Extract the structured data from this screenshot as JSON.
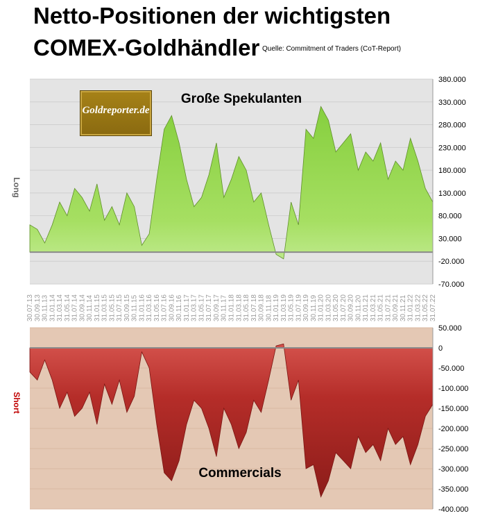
{
  "header": {
    "title_line1": "Netto-Positionen der wichtigsten",
    "title_line2": "COMEX-Goldhändler",
    "source": "Quelle: Commitment of Traders (CoT-Report)"
  },
  "logo": {
    "text": "Goldreporter.de"
  },
  "colors": {
    "long_fill": "#8fd24a",
    "long_panel": "#e4e4e4",
    "short_fill": "#b82f2b",
    "short_panel": "#e4c8b4"
  },
  "chart_data": [
    {
      "type": "area",
      "panel": "top",
      "series_label": "Große Spekulanten",
      "side_label": "Long",
      "ylim": [
        -70000,
        380000
      ],
      "yticks": [
        "380.000",
        "330.000",
        "280.000",
        "230.000",
        "180.000",
        "130.000",
        "80.000",
        "30.000",
        "-20.000",
        "-70.000"
      ],
      "ytick_values": [
        380000,
        330000,
        280000,
        230000,
        180000,
        130000,
        80000,
        30000,
        -20000,
        -70000
      ],
      "x_dates": [
        "30.07.13",
        "30.09.13",
        "30.11.13",
        "31.01.14",
        "31.03.14",
        "31.05.14",
        "31.07.14",
        "30.09.14",
        "30.11.14",
        "31.01.15",
        "31.03.15",
        "31.05.15",
        "31.07.15",
        "30.09.15",
        "30.11.15",
        "31.01.16",
        "31.03.16",
        "31.05.16",
        "31.07.16",
        "30.09.16",
        "30.11.16",
        "31.01.17",
        "31.03.17",
        "31.05.17",
        "31.07.17",
        "30.09.17",
        "30.11.17",
        "31.01.18",
        "31.03.18",
        "31.05.18",
        "31.07.18",
        "30.09.18",
        "30.11.18",
        "31.01.19",
        "31.03.19",
        "31.05.19",
        "31.07.19",
        "30.09.19",
        "30.11.19",
        "31.01.20",
        "31.03.20",
        "31.05.20",
        "31.07.20",
        "30.09.20",
        "30.11.20",
        "31.01.21",
        "31.03.21",
        "31.05.21",
        "31.07.21",
        "30.09.21",
        "30.11.21",
        "31.01.22",
        "31.03.22",
        "31.05.22",
        "31.07.22"
      ],
      "values": [
        60000,
        50000,
        20000,
        60000,
        110000,
        80000,
        140000,
        120000,
        90000,
        150000,
        70000,
        100000,
        60000,
        130000,
        100000,
        15000,
        40000,
        160000,
        270000,
        300000,
        240000,
        160000,
        100000,
        120000,
        170000,
        240000,
        120000,
        160000,
        210000,
        180000,
        110000,
        130000,
        60000,
        -5000,
        -15000,
        110000,
        60000,
        270000,
        250000,
        320000,
        290000,
        220000,
        240000,
        260000,
        180000,
        220000,
        200000,
        240000,
        160000,
        200000,
        180000,
        250000,
        200000,
        140000,
        110000
      ]
    },
    {
      "type": "area",
      "panel": "bottom",
      "series_label": "Commercials",
      "side_label": "Short",
      "ylim": [
        -400000,
        50000
      ],
      "yticks": [
        "50.000",
        "0",
        "-50.000",
        "-100.000",
        "-150.000",
        "-200.000",
        "-250.000",
        "-300.000",
        "-350.000",
        "-400.000"
      ],
      "ytick_values": [
        50000,
        0,
        -50000,
        -100000,
        -150000,
        -200000,
        -250000,
        -300000,
        -350000,
        -400000
      ],
      "x_dates": [
        "30.07.13",
        "30.09.13",
        "30.11.13",
        "31.01.14",
        "31.03.14",
        "31.05.14",
        "31.07.14",
        "30.09.14",
        "30.11.14",
        "31.01.15",
        "31.03.15",
        "31.05.15",
        "31.07.15",
        "30.09.15",
        "30.11.15",
        "31.01.16",
        "31.03.16",
        "31.05.16",
        "31.07.16",
        "30.09.16",
        "30.11.16",
        "31.01.17",
        "31.03.17",
        "31.05.17",
        "31.07.17",
        "30.09.17",
        "30.11.17",
        "31.01.18",
        "31.03.18",
        "31.05.18",
        "31.07.18",
        "30.09.18",
        "30.11.18",
        "31.01.19",
        "31.03.19",
        "31.05.19",
        "31.07.19",
        "30.09.19",
        "30.11.19",
        "31.01.20",
        "31.03.20",
        "31.05.20",
        "31.07.20",
        "30.09.20",
        "30.11.20",
        "31.01.21",
        "31.03.21",
        "31.05.21",
        "31.07.21",
        "30.09.21",
        "30.11.21",
        "31.01.22",
        "31.03.22",
        "31.05.22",
        "31.07.22"
      ],
      "values": [
        -60000,
        -80000,
        -30000,
        -80000,
        -150000,
        -110000,
        -170000,
        -150000,
        -110000,
        -190000,
        -90000,
        -140000,
        -80000,
        -160000,
        -120000,
        -10000,
        -50000,
        -190000,
        -310000,
        -330000,
        -280000,
        -190000,
        -130000,
        -150000,
        -200000,
        -270000,
        -150000,
        -190000,
        -250000,
        -210000,
        -130000,
        -160000,
        -80000,
        5000,
        10000,
        -130000,
        -80000,
        -300000,
        -290000,
        -370000,
        -330000,
        -260000,
        -280000,
        -300000,
        -220000,
        -260000,
        -240000,
        -280000,
        -200000,
        -240000,
        -220000,
        -290000,
        -240000,
        -170000,
        -140000
      ]
    }
  ]
}
